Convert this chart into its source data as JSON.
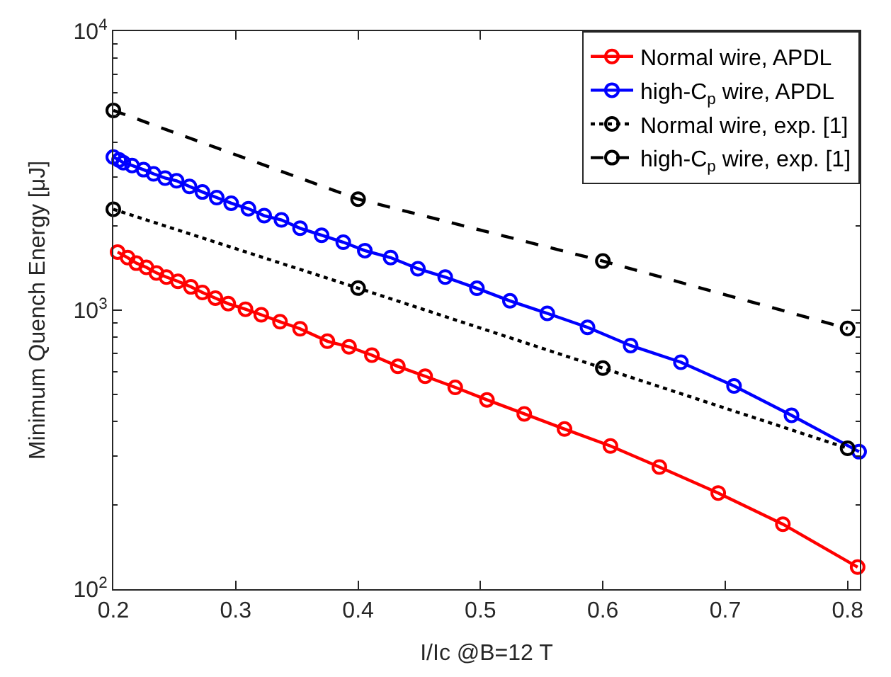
{
  "chart_data": {
    "type": "line",
    "xlabel": "I/Ic @B=12 T",
    "ylabel": "Minimum Quench Energy [μJ]",
    "log": "y",
    "legend": "top right",
    "marker": "circle",
    "xlim": [
      0.2,
      0.81
    ],
    "xticks": [
      0.2,
      0.3,
      0.4,
      0.5,
      0.6,
      0.7,
      0.8
    ],
    "ylim": [
      100,
      10000
    ],
    "yticks": [
      {
        "value": 100,
        "label": "10$^{2}$"
      },
      {
        "value": 1000,
        "label": "10$^{3}$"
      },
      {
        "value": 10000,
        "label": "10$^{4}$"
      }
    ],
    "series": [
      {
        "name": "Normal wire, APDL",
        "color": "#ff0000",
        "line_style": "solid",
        "x": [
          0.2035,
          0.2117,
          0.2188,
          0.227,
          0.2352,
          0.2434,
          0.2528,
          0.2634,
          0.2728,
          0.2834,
          0.2939,
          0.308,
          0.3209,
          0.3362,
          0.3526,
          0.3749,
          0.3926,
          0.4113,
          0.4325,
          0.4548,
          0.4794,
          0.5053,
          0.5358,
          0.5687,
          0.6062,
          0.6462,
          0.6943,
          0.7471,
          0.8082
        ],
        "values": [
          1616,
          1543,
          1474,
          1424,
          1360,
          1314,
          1269,
          1212,
          1157,
          1105,
          1055,
          1008,
          963,
          909,
          858,
          774,
          739,
          690,
          629,
          580,
          529,
          477,
          425,
          375,
          326,
          274,
          221,
          171,
          120
        ]
      },
      {
        "name": "high-C$_{p}$ wire, APDL",
        "color": "#0000ff",
        "line_style": "solid",
        "x": [
          0.2,
          0.2047,
          0.2082,
          0.2153,
          0.2247,
          0.2329,
          0.2423,
          0.2517,
          0.2622,
          0.2728,
          0.2845,
          0.2963,
          0.3104,
          0.3233,
          0.3374,
          0.3526,
          0.3702,
          0.3879,
          0.4055,
          0.4266,
          0.4489,
          0.4712,
          0.4971,
          0.5241,
          0.5546,
          0.5875,
          0.6227,
          0.6638,
          0.7072,
          0.7542,
          0.8094
        ],
        "values": [
          3537,
          3455,
          3378,
          3300,
          3188,
          3080,
          2975,
          2908,
          2777,
          2652,
          2532,
          2418,
          2309,
          2181,
          2106,
          1966,
          1856,
          1752,
          1635,
          1543,
          1408,
          1314,
          1198,
          1080,
          974,
          868,
          747,
          651,
          535,
          420,
          311
        ]
      },
      {
        "name": "Normal wire, exp. [1]",
        "color": "#000000",
        "line_style": "dotted",
        "x": [
          0.2,
          0.4,
          0.6,
          0.8
        ],
        "values": [
          2300,
          1200,
          620,
          320
        ]
      },
      {
        "name": "high-C$_{p}$ wire, exp. [1]",
        "color": "#000000",
        "line_style": "dashed",
        "x": [
          0.2,
          0.4,
          0.6,
          0.8
        ],
        "values": [
          5200,
          2500,
          1500,
          860
        ]
      }
    ]
  }
}
